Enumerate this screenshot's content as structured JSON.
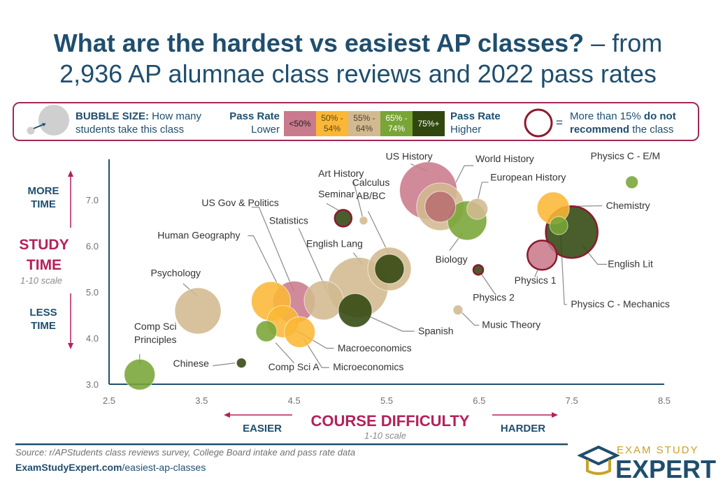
{
  "title": {
    "bold": "What are the hardest vs easiest AP classes?",
    "rest1": " – from",
    "line2": "2,936 AP alumnae class reviews and 2022 pass rates"
  },
  "legend": {
    "bubble_size_label": "BUBBLE SIZE:",
    "bubble_size_text1": "How many",
    "bubble_size_text2": "students take this class",
    "pass_rate_label": "Pass Rate",
    "lower": "Lower",
    "higher": "Higher",
    "bins": [
      {
        "label1": "<50%",
        "label2": "",
        "color": "#c97a8c",
        "text": "#222222"
      },
      {
        "label1": "50% -",
        "label2": "54%",
        "color": "#fbb735",
        "text": "#5a4a20"
      },
      {
        "label1": "55% -",
        "label2": "64%",
        "color": "#d2b98f",
        "text": "#4a4030"
      },
      {
        "label1": "65% -",
        "label2": "74%",
        "color": "#78a535",
        "text": "#ffffff"
      },
      {
        "label1": "75%+",
        "label2": "",
        "color": "#31470f",
        "text": "#ffffff"
      }
    ],
    "equals": "=",
    "not_rec_1a": "More than 15% ",
    "not_rec_1b": "do not",
    "not_rec_2a": "recommend",
    "not_rec_2b": " the class",
    "outline_color": "#8b1a2e"
  },
  "chart_data": {
    "type": "scatter",
    "xlabel": "COURSE DIFFICULTY",
    "xlabel_sub": "1-10 scale",
    "ylabel_1": "STUDY",
    "ylabel_2": "TIME",
    "ylabel_sub": "1-10 scale",
    "x_low": "EASIER",
    "x_high": "HARDER",
    "y_high_1": "MORE",
    "y_high_2": "TIME",
    "y_low_1": "LESS",
    "y_low_2": "TIME",
    "xlim": [
      2.5,
      8.5
    ],
    "ylim": [
      3.0,
      8.0
    ],
    "xticks": [
      "2.5",
      "3.5",
      "4.5",
      "5.5",
      "6.5",
      "7.5",
      "8.5"
    ],
    "yticks": [
      "3.0",
      "4.0",
      "5.0",
      "6.0",
      "7.0"
    ],
    "points": [
      {
        "name": "Comp Sci Principles",
        "x": 2.83,
        "y": 3.21,
        "size": 22,
        "color": "#78a535",
        "outline": false
      },
      {
        "name": "Chinese",
        "x": 3.93,
        "y": 3.46,
        "size": 7,
        "color": "#31470f",
        "outline": false
      },
      {
        "name": "Psychology",
        "x": 3.46,
        "y": 4.59,
        "size": 33,
        "color": "#d2b98f",
        "outline": false
      },
      {
        "name": "Comp Sci A",
        "x": 4.2,
        "y": 4.15,
        "size": 15,
        "color": "#78a535",
        "outline": false
      },
      {
        "name": "US Gov & Politics",
        "x": 4.25,
        "y": 4.8,
        "size": 28,
        "color": "#fbb735",
        "outline": false
      },
      {
        "name": "Microeconomics",
        "x": 4.56,
        "y": 4.13,
        "size": 22,
        "color": "#fbb735",
        "outline": false
      },
      {
        "name": "Macroeconomics",
        "x": 4.38,
        "y": 4.36,
        "size": 23,
        "color": "#fbb735",
        "outline": false
      },
      {
        "name": "Human Geography",
        "x": 4.5,
        "y": 4.78,
        "size": 30,
        "color": "#c97a8c",
        "outline": false
      },
      {
        "name": "Statistics",
        "x": 4.82,
        "y": 4.82,
        "size": 28,
        "color": "#d2b98f",
        "outline": false
      },
      {
        "name": "English Lang",
        "x": 5.19,
        "y": 5.1,
        "size": 43,
        "color": "#d2b98f",
        "outline": false
      },
      {
        "name": "Spanish",
        "x": 5.16,
        "y": 4.6,
        "size": 24,
        "color": "#31470f",
        "outline": false
      },
      {
        "name": "Calculus AB/BC",
        "x": 5.53,
        "y": 5.5,
        "size": 31,
        "color": "#d2b98f",
        "outline": false
      },
      {
        "name": "Calculus AB/BC inner",
        "x": 5.53,
        "y": 5.5,
        "size": 21,
        "color": "#31470f",
        "outline": false
      },
      {
        "name": "Seminar",
        "x": 5.03,
        "y": 6.6,
        "size": 12,
        "color": "#31470f",
        "outline": true
      },
      {
        "name": "Art History",
        "x": 5.25,
        "y": 6.55,
        "size": 6,
        "color": "#d2b98f",
        "outline": false
      },
      {
        "name": "US History",
        "x": 5.95,
        "y": 7.2,
        "size": 41,
        "color": "#c97a8c",
        "outline": false
      },
      {
        "name": "World History",
        "x": 6.08,
        "y": 6.85,
        "size": 34,
        "color": "#d2b98f",
        "outline": false
      },
      {
        "name": "World History inner",
        "x": 6.08,
        "y": 6.85,
        "size": 22,
        "color": "#b86f6f",
        "outline": false
      },
      {
        "name": "Biology",
        "x": 6.37,
        "y": 6.55,
        "size": 28,
        "color": "#78a535",
        "outline": false
      },
      {
        "name": "European History",
        "x": 6.48,
        "y": 6.8,
        "size": 15,
        "color": "#d2b98f",
        "outline": false
      },
      {
        "name": "Physics 2",
        "x": 6.49,
        "y": 5.48,
        "size": 7,
        "color": "#31470f",
        "outline": true
      },
      {
        "name": "Music Theory",
        "x": 6.27,
        "y": 4.61,
        "size": 7,
        "color": "#d2b98f",
        "outline": false
      },
      {
        "name": "Physics 1",
        "x": 7.18,
        "y": 5.8,
        "size": 21,
        "color": "#c97a8c",
        "outline": true
      },
      {
        "name": "Chemistry",
        "x": 7.3,
        "y": 6.82,
        "size": 23,
        "color": "#fbb735",
        "outline": false
      },
      {
        "name": "English Lit",
        "x": 7.5,
        "y": 6.3,
        "size": 37,
        "color": "#31470f",
        "outline": true
      },
      {
        "name": "Physics C - Mechanics",
        "x": 7.36,
        "y": 6.44,
        "size": 13,
        "color": "#78a535",
        "outline": false
      },
      {
        "name": "Physics C - E/M",
        "x": 8.15,
        "y": 7.38,
        "size": 9,
        "color": "#78a535",
        "outline": false
      }
    ],
    "labels": [
      {
        "lines": [
          "Comp Sci",
          "Principles"
        ],
        "x": 3.0,
        "y": 4.18,
        "anchor": "middle",
        "leader": [
          [
            2.83,
            3.65
          ],
          [
            2.83,
            3.43
          ]
        ]
      },
      {
        "lines": [
          "Chinese"
        ],
        "x": 3.58,
        "y": 3.38,
        "anchor": "end",
        "leader": [
          [
            3.62,
            3.4
          ],
          [
            3.86,
            3.46
          ]
        ]
      },
      {
        "lines": [
          "Psychology"
        ],
        "x": 3.22,
        "y": 5.34,
        "anchor": "middle",
        "leader": [
          [
            3.3,
            5.18
          ],
          [
            3.46,
            4.9
          ]
        ]
      },
      {
        "lines": [
          "Human Geography"
        ],
        "x": 3.47,
        "y": 6.16,
        "anchor": "middle",
        "leader": [
          [
            4.0,
            6.22
          ],
          [
            4.06,
            6.22
          ],
          [
            4.35,
            5.05
          ]
        ]
      },
      {
        "lines": [
          "US Gov & Politics"
        ],
        "x": 3.5,
        "y": 6.86,
        "anchor": "start",
        "leader": [
          [
            4.04,
            6.84
          ],
          [
            4.12,
            6.84
          ],
          [
            4.5,
            5.0
          ]
        ]
      },
      {
        "lines": [
          "Statistics"
        ],
        "x": 4.23,
        "y": 6.48,
        "anchor": "start",
        "leader": [
          [
            4.55,
            6.38
          ],
          [
            4.86,
            5.0
          ]
        ]
      },
      {
        "lines": [
          "Art History"
        ],
        "x": 4.76,
        "y": 7.5,
        "anchor": "start",
        "leader": [
          [
            5.14,
            7.42
          ],
          [
            5.24,
            6.62
          ]
        ]
      },
      {
        "lines": [
          "Seminar"
        ],
        "x": 4.76,
        "y": 7.05,
        "anchor": "start",
        "leader": [
          [
            4.85,
            6.92
          ],
          [
            5.0,
            6.75
          ]
        ]
      },
      {
        "lines": [
          "Calculus",
          "AB/BC"
        ],
        "x": 5.33,
        "y": 7.3,
        "anchor": "middle",
        "leader": [
          [
            5.3,
            6.75
          ],
          [
            5.53,
            5.8
          ]
        ]
      },
      {
        "lines": [
          "English Lang"
        ],
        "x": 4.63,
        "y": 5.98,
        "anchor": "start",
        "leader": [
          [
            5.14,
            5.85
          ],
          [
            5.24,
            5.6
          ]
        ]
      },
      {
        "lines": [
          "US History"
        ],
        "x": 5.49,
        "y": 7.87,
        "anchor": "start",
        "leader": [
          [
            5.76,
            7.78
          ],
          [
            5.94,
            7.62
          ]
        ]
      },
      {
        "lines": [
          "World History"
        ],
        "x": 6.46,
        "y": 7.82,
        "anchor": "start",
        "leader": [
          [
            6.44,
            7.74
          ],
          [
            6.34,
            7.74
          ],
          [
            6.1,
            6.8
          ]
        ]
      },
      {
        "lines": [
          "European History"
        ],
        "x": 6.62,
        "y": 7.42,
        "anchor": "start",
        "leader": [
          [
            6.6,
            7.38
          ],
          [
            6.53,
            7.38
          ],
          [
            6.48,
            6.96
          ]
        ]
      },
      {
        "lines": [
          "Biology"
        ],
        "x": 6.2,
        "y": 5.64,
        "anchor": "middle",
        "leader": [
          [
            6.18,
            5.9
          ],
          [
            6.32,
            6.28
          ]
        ]
      },
      {
        "lines": [
          "Physics C - E/M"
        ],
        "x": 8.08,
        "y": 7.88,
        "anchor": "middle"
      },
      {
        "lines": [
          "Chemistry"
        ],
        "x": 7.87,
        "y": 6.8,
        "anchor": "start",
        "leader": [
          [
            7.83,
            6.87
          ],
          [
            7.55,
            6.86
          ]
        ]
      },
      {
        "lines": [
          "English Lit"
        ],
        "x": 7.89,
        "y": 5.54,
        "anchor": "start",
        "leader": [
          [
            7.88,
            5.6
          ],
          [
            7.78,
            5.6
          ],
          [
            7.62,
            6.0
          ]
        ]
      },
      {
        "lines": [
          "Physics 1"
        ],
        "x": 6.88,
        "y": 5.18,
        "anchor": "start",
        "leader": [
          [
            7.1,
            5.32
          ],
          [
            7.14,
            5.52
          ]
        ]
      },
      {
        "lines": [
          "Physics 2"
        ],
        "x": 6.43,
        "y": 4.81,
        "anchor": "start",
        "leader": [
          [
            6.67,
            4.96
          ],
          [
            6.52,
            5.4
          ]
        ]
      },
      {
        "lines": [
          "Physics C - Mechanics"
        ],
        "x": 7.49,
        "y": 4.67,
        "anchor": "start",
        "leader": [
          [
            7.45,
            4.73
          ],
          [
            7.42,
            4.73
          ],
          [
            7.38,
            6.28
          ]
        ]
      },
      {
        "lines": [
          "Music Theory"
        ],
        "x": 6.53,
        "y": 4.22,
        "anchor": "start",
        "leader": [
          [
            6.5,
            4.28
          ],
          [
            6.45,
            4.28
          ],
          [
            6.3,
            4.58
          ]
        ]
      },
      {
        "lines": [
          "Spanish"
        ],
        "x": 5.84,
        "y": 4.08,
        "anchor": "start",
        "leader": [
          [
            5.8,
            4.15
          ],
          [
            5.67,
            4.15
          ],
          [
            5.22,
            4.55
          ]
        ]
      },
      {
        "lines": [
          "Macroeconomics"
        ],
        "x": 4.97,
        "y": 3.71,
        "anchor": "start",
        "leader": [
          [
            4.93,
            3.78
          ],
          [
            4.85,
            3.78
          ],
          [
            4.45,
            4.25
          ]
        ]
      },
      {
        "lines": [
          "Microeconomics"
        ],
        "x": 4.92,
        "y": 3.3,
        "anchor": "start",
        "leader": [
          [
            4.88,
            3.36
          ],
          [
            4.8,
            3.36
          ],
          [
            4.6,
            4.0
          ]
        ]
      },
      {
        "lines": [
          "Comp Sci A"
        ],
        "x": 4.22,
        "y": 3.3,
        "anchor": "start",
        "leader": [
          [
            4.5,
            3.46
          ],
          [
            4.3,
            3.9
          ]
        ]
      }
    ]
  },
  "footer": {
    "source": "Source: r/APStudents class reviews survey, College Board intake and pass rate data",
    "url_bold": "ExamStudyExpert.com",
    "url_rest": "/easiest-ap-classes",
    "brand_top": "EXAM STUDY",
    "brand_bottom": "EXPERT"
  }
}
